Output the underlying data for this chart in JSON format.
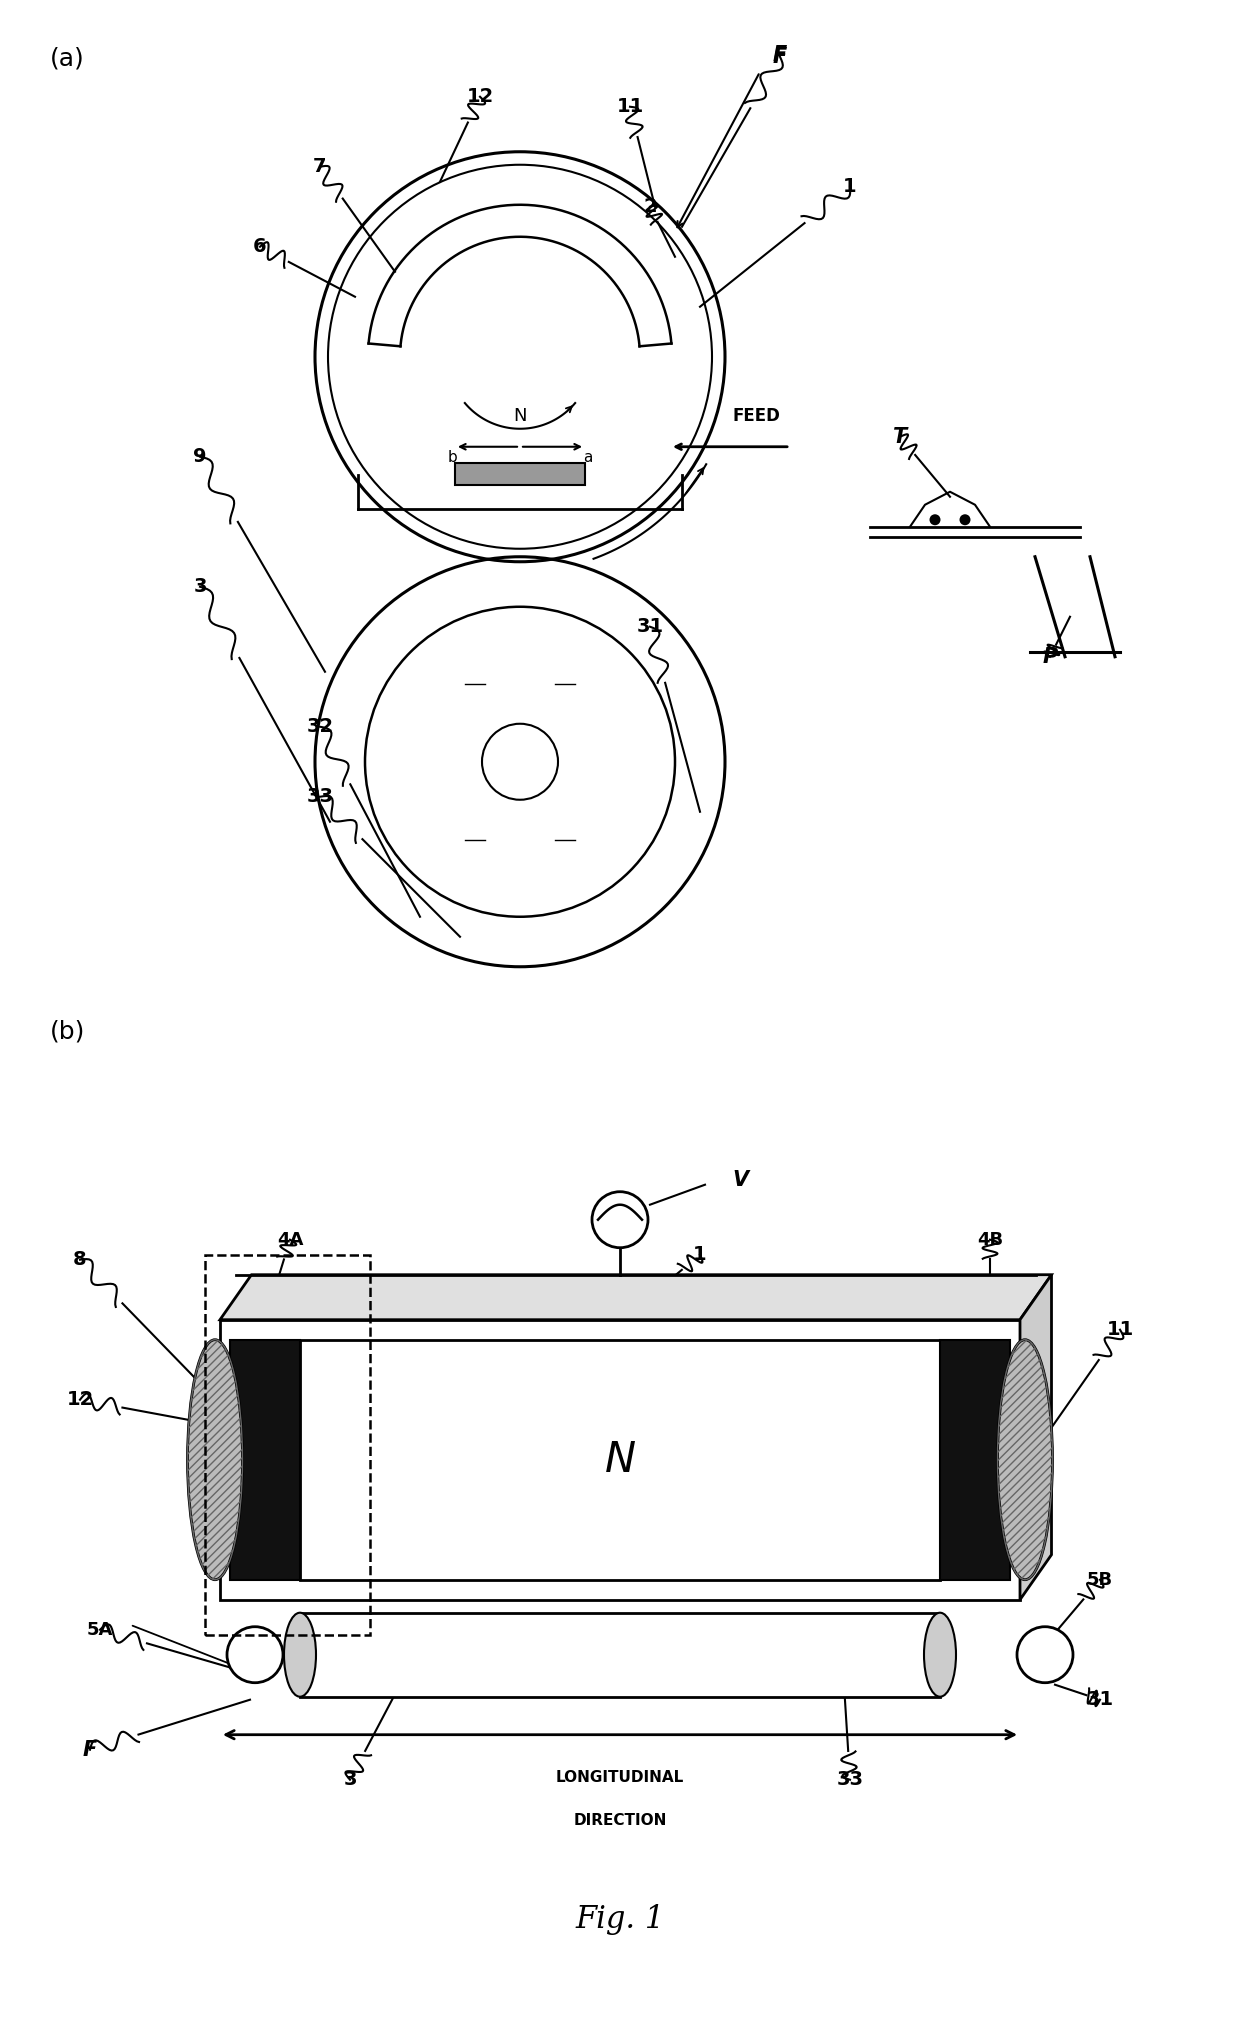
{
  "fig_title": "Fig. 1",
  "bg": "#ffffff",
  "fig_width": 12.4,
  "fig_height": 20.27,
  "panel_a": "(a)",
  "panel_b": "(b)"
}
